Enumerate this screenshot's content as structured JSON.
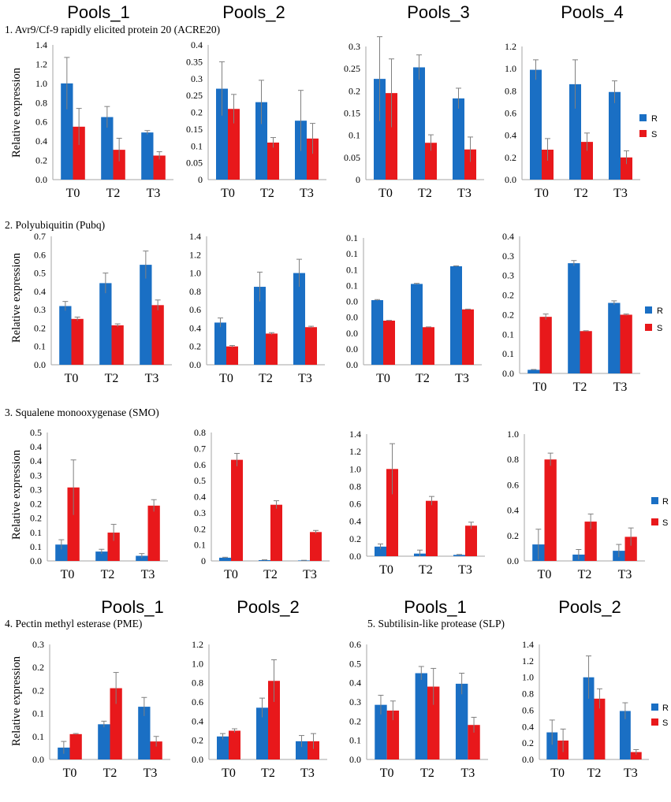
{
  "colors": {
    "R": "#1a6fc4",
    "S": "#e8181b",
    "error_bar": "#808080",
    "axis": "#a6a6a6"
  },
  "titles": {
    "pool1_top": "Pools_1",
    "pool2_top": "Pools_2",
    "pool3_top": "Pools_3",
    "pool4_top": "Pools_4",
    "pool1_bottom_left": "Pools_1",
    "pool2_bottom_left": "Pools_2",
    "pool1_bottom_right": "Pools_1",
    "pool2_bottom_right": "Pools_2"
  },
  "sections": {
    "s1": "1. Avr9/Cf-9 rapidly elicited protein 20 (ACRE20)",
    "s2": "2. Polyubiquitin (Pubq)",
    "s3": "3. Squalene monooxygenase (SMO)",
    "s4": "4. Pectin methyl esterase (PME)",
    "s5": "5. Subtilisin-like protease (SLP)"
  },
  "ylabel": "Relative expression",
  "legend": {
    "R": "R",
    "S": "S"
  },
  "chart_data": [
    {
      "id": "c1_1",
      "type": "bar",
      "gene": "ACRE20",
      "pool": "Pools_1",
      "categories": [
        "T0",
        "T2",
        "T3"
      ],
      "ylim": [
        0,
        1.4
      ],
      "yticks": [
        "0.0",
        "0.2",
        "0.4",
        "0.6",
        "0.8",
        "1.0",
        "1.2",
        "1.4"
      ],
      "xlabel": "",
      "ylabel": "Relative expression",
      "series": [
        {
          "name": "R",
          "values": [
            1.0,
            0.65,
            0.49
          ],
          "errors": [
            0.27,
            0.11,
            0.02
          ]
        },
        {
          "name": "S",
          "values": [
            0.55,
            0.31,
            0.25
          ],
          "errors": [
            0.19,
            0.12,
            0.04
          ]
        }
      ]
    },
    {
      "id": "c1_2",
      "type": "bar",
      "gene": "ACRE20",
      "pool": "Pools_2",
      "categories": [
        "T0",
        "T2",
        "T3"
      ],
      "ylim": [
        0,
        0.4
      ],
      "yticks": [
        "0",
        "0.05",
        "0.1",
        "0.15",
        "0.2",
        "0.25",
        "0.3",
        "0.35",
        "0.4"
      ],
      "xlabel": "",
      "ylabel": "",
      "series": [
        {
          "name": "R",
          "values": [
            0.27,
            0.23,
            0.175
          ],
          "errors": [
            0.08,
            0.065,
            0.09
          ]
        },
        {
          "name": "S",
          "values": [
            0.21,
            0.11,
            0.122
          ],
          "errors": [
            0.043,
            0.015,
            0.045
          ]
        }
      ]
    },
    {
      "id": "c1_3",
      "type": "bar",
      "gene": "ACRE20",
      "pool": "Pools_3",
      "categories": [
        "T0",
        "T2",
        "T3"
      ],
      "ylim": [
        0,
        0.3
      ],
      "yticks": [
        "0",
        "0.05",
        "0.1",
        "0.15",
        "0.2",
        "0.25",
        "0.3"
      ],
      "xlabel": "",
      "ylabel": "",
      "series": [
        {
          "name": "R",
          "values": [
            0.227,
            0.253,
            0.183
          ],
          "errors": [
            0.095,
            0.028,
            0.023
          ]
        },
        {
          "name": "S",
          "values": [
            0.195,
            0.083,
            0.068
          ],
          "errors": [
            0.077,
            0.018,
            0.028
          ]
        }
      ]
    },
    {
      "id": "c1_4",
      "type": "bar",
      "gene": "ACRE20",
      "pool": "Pools_4",
      "categories": [
        "T0",
        "T2",
        "T3"
      ],
      "ylim": [
        0,
        1.2
      ],
      "yticks": [
        "0.0",
        "0.2",
        "0.4",
        "0.6",
        "0.8",
        "1.0",
        "1.2"
      ],
      "xlabel": "",
      "ylabel": "",
      "series": [
        {
          "name": "R",
          "values": [
            0.99,
            0.86,
            0.79
          ],
          "errors": [
            0.09,
            0.22,
            0.1
          ]
        },
        {
          "name": "S",
          "values": [
            0.27,
            0.34,
            0.2
          ],
          "errors": [
            0.1,
            0.08,
            0.06
          ]
        }
      ]
    },
    {
      "id": "c2_1",
      "type": "bar",
      "gene": "Pubq",
      "pool": "Pools_1",
      "categories": [
        "T0",
        "T2",
        "T3"
      ],
      "ylim": [
        0,
        0.7
      ],
      "yticks": [
        "0.0",
        "0.1",
        "0.2",
        "0.3",
        "0.4",
        "0.5",
        "0.6",
        "0.7"
      ],
      "xlabel": "",
      "ylabel": "Relative expression",
      "series": [
        {
          "name": "R",
          "values": [
            0.32,
            0.445,
            0.545
          ],
          "errors": [
            0.025,
            0.055,
            0.075
          ]
        },
        {
          "name": "S",
          "values": [
            0.25,
            0.215,
            0.325
          ],
          "errors": [
            0.01,
            0.008,
            0.028
          ]
        }
      ]
    },
    {
      "id": "c2_2",
      "type": "bar",
      "gene": "Pubq",
      "pool": "Pools_2",
      "categories": [
        "T0",
        "T2",
        "T3"
      ],
      "ylim": [
        0,
        1.4
      ],
      "yticks": [
        "0.0",
        "0.2",
        "0.4",
        "0.6",
        "0.8",
        "1.0",
        "1.2",
        "1.4"
      ],
      "xlabel": "",
      "ylabel": "",
      "series": [
        {
          "name": "R",
          "values": [
            0.46,
            0.85,
            1.0
          ],
          "errors": [
            0.05,
            0.16,
            0.15
          ]
        },
        {
          "name": "S",
          "values": [
            0.2,
            0.34,
            0.41
          ],
          "errors": [
            0.01,
            0.01,
            0.01
          ]
        }
      ]
    },
    {
      "id": "c2_3",
      "type": "bar",
      "gene": "Pubq",
      "pool": "Pools_3",
      "categories": [
        "T0",
        "T2",
        "T3"
      ],
      "ylim": [
        0,
        0.1
      ],
      "yticks": [
        "0.0",
        "0.0",
        "0.0",
        "0.0",
        "0.0",
        "0.1",
        "0.1",
        "0.1",
        "0.1"
      ],
      "xlabel": "",
      "ylabel": "",
      "series": [
        {
          "name": "R",
          "values": [
            0.05095,
            0.06373,
            0.07764
          ],
          "errors": [
            0.00044,
            0.00044,
            0.00033
          ]
        },
        {
          "name": "S",
          "values": [
            0.03478,
            0.02964,
            0.04366
          ],
          "errors": [
            0.00022,
            0.00022,
            0.00022
          ]
        }
      ]
    },
    {
      "id": "c2_4",
      "type": "bar",
      "gene": "Pubq",
      "pool": "Pools_4",
      "categories": [
        "T0",
        "T2",
        "T3"
      ],
      "ylim": [
        0,
        0.35
      ],
      "yticks": [
        "0.0",
        "0.1",
        "0.1",
        "0.2",
        "0.2",
        "0.3",
        "0.3",
        "0.4"
      ],
      "xlabel": "",
      "ylabel": "",
      "series": [
        {
          "name": "R",
          "values": [
            0.0092,
            0.2814,
            0.1801
          ],
          "errors": [
            0.0009,
            0.0068,
            0.0052
          ]
        },
        {
          "name": "S",
          "values": [
            0.1445,
            0.1081,
            0.1499
          ],
          "errors": [
            0.0072,
            0.0009,
            0.0018
          ]
        }
      ]
    },
    {
      "id": "c3_1",
      "type": "bar",
      "gene": "SMO",
      "pool": "Pools_1",
      "categories": [
        "T0",
        "T2",
        "T3"
      ],
      "ylim": [
        0,
        0.5
      ],
      "yticks": [
        "0.0",
        "0.1",
        "0.1",
        "0.2",
        "0.2",
        "0.3",
        "0.3",
        "0.4",
        "0.4",
        "0.5"
      ],
      "xlabel": "",
      "ylabel": "Relative expression",
      "series": [
        {
          "name": "R",
          "values": [
            0.0637,
            0.0365,
            0.0199
          ],
          "errors": [
            0.0188,
            0.0088,
            0.0088
          ]
        },
        {
          "name": "S",
          "values": [
            0.2861,
            0.1103,
            0.2153
          ],
          "errors": [
            0.1072,
            0.0321,
            0.0232
          ]
        }
      ]
    },
    {
      "id": "c3_2",
      "type": "bar",
      "gene": "SMO",
      "pool": "Pools_2",
      "categories": [
        "T0",
        "T2",
        "T3"
      ],
      "ylim": [
        0,
        0.8
      ],
      "yticks": [
        "0",
        "0.1",
        "0.2",
        "0.3",
        "0.4",
        "0.5",
        "0.6",
        "0.7",
        "0.8"
      ],
      "xlabel": "",
      "ylabel": "",
      "series": [
        {
          "name": "R",
          "values": [
            0.02,
            0.005,
            0.003
          ],
          "errors": [
            0.003,
            0.002,
            0.001
          ]
        },
        {
          "name": "S",
          "values": [
            0.63,
            0.35,
            0.18
          ],
          "errors": [
            0.04,
            0.025,
            0.01
          ]
        }
      ]
    },
    {
      "id": "c3_3",
      "type": "bar",
      "gene": "SMO",
      "pool": "Pools_3",
      "categories": [
        "T0",
        "T2",
        "T3"
      ],
      "ylim": [
        0,
        1.4
      ],
      "yticks": [
        "0.0",
        "0.2",
        "0.4",
        "0.6",
        "0.8",
        "1.0",
        "1.2",
        "1.4"
      ],
      "xlabel": "",
      "ylabel": "",
      "series": [
        {
          "name": "R",
          "values": [
            0.11,
            0.03,
            0.015
          ],
          "errors": [
            0.03,
            0.04,
            0.005
          ]
        },
        {
          "name": "S",
          "values": [
            1.0,
            0.635,
            0.35
          ],
          "errors": [
            0.29,
            0.05,
            0.04
          ]
        }
      ]
    },
    {
      "id": "c3_4",
      "type": "bar",
      "gene": "SMO",
      "pool": "Pools_4",
      "categories": [
        "T0",
        "T2",
        "T3"
      ],
      "ylim": [
        0,
        1.0
      ],
      "yticks": [
        "0.0",
        "0.2",
        "0.4",
        "0.6",
        "0.8",
        "1.0"
      ],
      "xlabel": "",
      "ylabel": "",
      "series": [
        {
          "name": "R",
          "values": [
            0.13,
            0.05,
            0.08
          ],
          "errors": [
            0.12,
            0.04,
            0.05
          ]
        },
        {
          "name": "S",
          "values": [
            0.8,
            0.31,
            0.19
          ],
          "errors": [
            0.05,
            0.06,
            0.07
          ]
        }
      ]
    },
    {
      "id": "c4_1",
      "type": "bar",
      "gene": "PME",
      "pool": "Pools_1",
      "categories": [
        "T0",
        "T2",
        "T3"
      ],
      "ylim": [
        0,
        0.25
      ],
      "yticks": [
        "0.0",
        "0.1",
        "0.1",
        "0.2",
        "0.2",
        "0.3"
      ],
      "xlabel": "",
      "ylabel": "Relative expression",
      "series": [
        {
          "name": "R",
          "values": [
            0.0258,
            0.0765,
            0.1146
          ],
          "errors": [
            0.0134,
            0.0067,
            0.0202
          ]
        },
        {
          "name": "S",
          "values": [
            0.0551,
            0.1549,
            0.0391
          ],
          "errors": [
            0.0013,
            0.0342,
            0.011
          ]
        }
      ]
    },
    {
      "id": "c4_2",
      "type": "bar",
      "gene": "PME",
      "pool": "Pools_2",
      "categories": [
        "T0",
        "T2",
        "T3"
      ],
      "ylim": [
        0,
        1.2
      ],
      "yticks": [
        "0.0",
        "0.2",
        "0.4",
        "0.6",
        "0.8",
        "1.0",
        "1.2"
      ],
      "xlabel": "",
      "ylabel": "",
      "series": [
        {
          "name": "R",
          "values": [
            0.24,
            0.54,
            0.19
          ],
          "errors": [
            0.03,
            0.1,
            0.06
          ]
        },
        {
          "name": "S",
          "values": [
            0.3,
            0.82,
            0.19
          ],
          "errors": [
            0.02,
            0.22,
            0.08
          ]
        }
      ]
    },
    {
      "id": "c5_1",
      "type": "bar",
      "gene": "SLP",
      "pool": "Pools_1",
      "categories": [
        "T0",
        "T2",
        "T3"
      ],
      "ylim": [
        0,
        0.6
      ],
      "yticks": [
        "0.0",
        "0.1",
        "0.2",
        "0.3",
        "0.4",
        "0.5",
        "0.6"
      ],
      "xlabel": "",
      "ylabel": "",
      "series": [
        {
          "name": "R",
          "values": [
            0.285,
            0.45,
            0.395
          ],
          "errors": [
            0.05,
            0.035,
            0.055
          ]
        },
        {
          "name": "S",
          "values": [
            0.255,
            0.38,
            0.18
          ],
          "errors": [
            0.05,
            0.095,
            0.04
          ]
        }
      ]
    },
    {
      "id": "c5_2",
      "type": "bar",
      "gene": "SLP",
      "pool": "Pools_2",
      "categories": [
        "T0",
        "T2",
        "T3"
      ],
      "ylim": [
        0,
        1.4
      ],
      "yticks": [
        "0.0",
        "0.2",
        "0.4",
        "0.6",
        "0.8",
        "1.0",
        "1.2",
        "1.4"
      ],
      "xlabel": "",
      "ylabel": "",
      "series": [
        {
          "name": "R",
          "values": [
            0.33,
            1.0,
            0.59
          ],
          "errors": [
            0.15,
            0.26,
            0.1
          ]
        },
        {
          "name": "S",
          "values": [
            0.23,
            0.74,
            0.09
          ],
          "errors": [
            0.14,
            0.12,
            0.03
          ]
        }
      ]
    }
  ]
}
